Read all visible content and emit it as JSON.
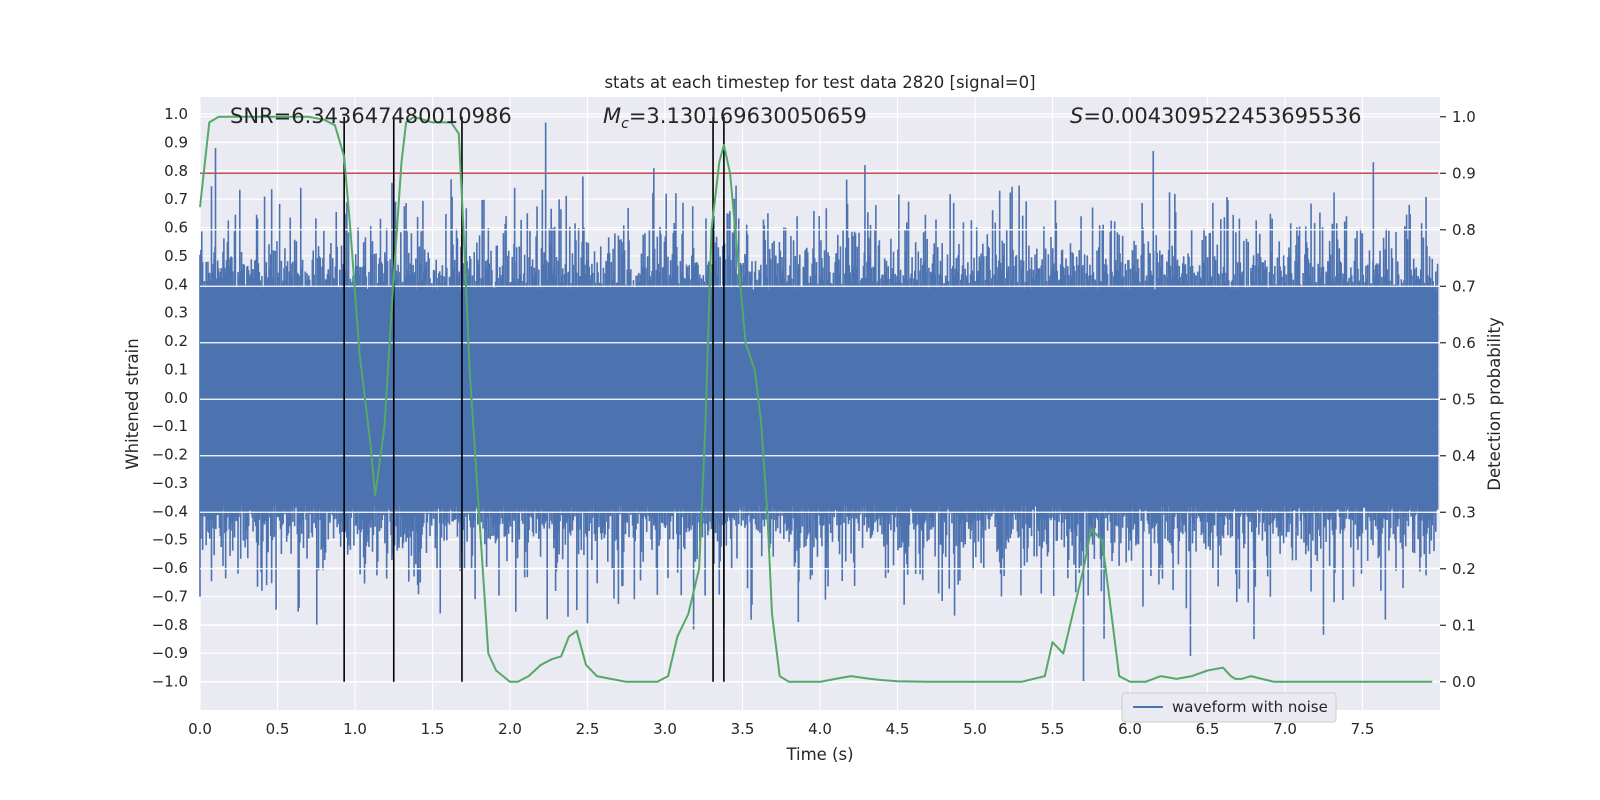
{
  "chart_data": {
    "type": "line",
    "title": "stats at each timestep for test data 2820 [signal=0]",
    "xlabel": "Time (s)",
    "ylabel_left": "Whitened strain",
    "ylabel_right": "Detection probability",
    "xlim": [
      0.0,
      8.0
    ],
    "ylim_left": [
      -1.1,
      1.06
    ],
    "ylim_right": [
      -0.05,
      1.035
    ],
    "x_ticks": [
      0.0,
      0.5,
      1.0,
      1.5,
      2.0,
      2.5,
      3.0,
      3.5,
      4.0,
      4.5,
      5.0,
      5.5,
      6.0,
      6.5,
      7.0,
      7.5
    ],
    "x_tick_labels": [
      "0.0",
      "0.5",
      "1.0",
      "1.5",
      "2.0",
      "2.5",
      "3.0",
      "3.5",
      "4.0",
      "4.5",
      "5.0",
      "5.5",
      "6.0",
      "6.5",
      "7.0",
      "7.5"
    ],
    "y_left_ticks": [
      1.0,
      0.9,
      0.8,
      0.7,
      0.6,
      0.5,
      0.4,
      0.3,
      0.2,
      0.1,
      0.0,
      -0.1,
      -0.2,
      -0.3,
      -0.4,
      -0.5,
      -0.6,
      -0.7,
      -0.8,
      -0.9,
      -1.0
    ],
    "y_left_tick_labels": [
      "1.0",
      "0.9",
      "0.8",
      "0.7",
      "0.6",
      "0.5",
      "0.4",
      "0.3",
      "0.2",
      "0.1",
      "0.0",
      "−0.1",
      "−0.2",
      "−0.3",
      "−0.4",
      "−0.5",
      "−0.6",
      "−0.7",
      "−0.8",
      "−0.9",
      "−1.0"
    ],
    "y_right_ticks": [
      1.0,
      0.9,
      0.8,
      0.7,
      0.6,
      0.5,
      0.4,
      0.3,
      0.2,
      0.1,
      0.0
    ],
    "y_right_tick_labels": [
      "1.0",
      "0.9",
      "0.8",
      "0.7",
      "0.6",
      "0.5",
      "0.4",
      "0.3",
      "0.2",
      "0.1",
      "0.0"
    ],
    "annotations": {
      "snr": "SNR=6.343647480010986",
      "mc_symbol": "M",
      "mc_subscript": "c",
      "mc_value": "=3.130169630050659",
      "s_symbol": "S",
      "s_value": "=0.004309522453695536"
    },
    "threshold": 0.9,
    "vertical_lines_s": [
      0.93,
      1.25,
      1.69,
      3.31,
      3.38
    ],
    "waveform": {
      "name": "waveform with noise",
      "color": "#4c72b0",
      "duration_s": 7.99,
      "core_amplitude": 0.38,
      "typical_peak": 0.6,
      "spikes": [
        {
          "t": 0.1,
          "v": 0.88
        },
        {
          "t": 0.65,
          "v": 0.74
        },
        {
          "t": 1.02,
          "v": 0.6
        },
        {
          "t": 1.62,
          "v": 0.77
        },
        {
          "t": 2.03,
          "v": 0.74
        },
        {
          "t": 2.23,
          "v": 0.97
        },
        {
          "t": 2.47,
          "v": 0.78
        },
        {
          "t": 4.29,
          "v": 0.82
        },
        {
          "t": 6.15,
          "v": 0.87
        },
        {
          "t": 7.57,
          "v": 0.83
        },
        {
          "t": 0.43,
          "v": -0.66
        },
        {
          "t": 1.55,
          "v": -0.76
        },
        {
          "t": 2.24,
          "v": -0.78
        },
        {
          "t": 3.38,
          "v": -0.81
        },
        {
          "t": 3.86,
          "v": -0.79
        },
        {
          "t": 5.7,
          "v": -1.0
        },
        {
          "t": 6.39,
          "v": -0.91
        },
        {
          "t": 6.8,
          "v": -0.85
        }
      ]
    },
    "detection_probability": {
      "color": "#55a868",
      "x": [
        0.0,
        0.06,
        0.12,
        0.2,
        0.3,
        0.4,
        0.5,
        0.6,
        0.7,
        0.8,
        0.87,
        0.93,
        0.97,
        1.03,
        1.1,
        1.13,
        1.19,
        1.25,
        1.3,
        1.33,
        1.38,
        1.44,
        1.5,
        1.56,
        1.62,
        1.67,
        1.7,
        1.74,
        1.8,
        1.86,
        1.91,
        2.0,
        2.05,
        2.12,
        2.2,
        2.27,
        2.33,
        2.38,
        2.43,
        2.49,
        2.56,
        2.65,
        2.75,
        2.85,
        2.95,
        3.02,
        3.08,
        3.15,
        3.22,
        3.26,
        3.3,
        3.35,
        3.38,
        3.42,
        3.46,
        3.52,
        3.58,
        3.62,
        3.66,
        3.69,
        3.74,
        3.8,
        3.9,
        4.0,
        4.1,
        4.2,
        4.3,
        4.4,
        4.5,
        4.7,
        4.9,
        5.1,
        5.3,
        5.45,
        5.5,
        5.57,
        5.63,
        5.7,
        5.75,
        5.82,
        5.88,
        5.93,
        6.0,
        6.05,
        6.1,
        6.2,
        6.3,
        6.4,
        6.5,
        6.6,
        6.65,
        6.68,
        6.72,
        6.78,
        6.85,
        6.93,
        7.0,
        7.1,
        7.2,
        7.4,
        7.6,
        7.8,
        7.95
      ],
      "y": [
        0.84,
        0.99,
        1.0,
        1.0,
        1.0,
        1.0,
        1.0,
        1.0,
        1.0,
        0.995,
        0.985,
        0.93,
        0.8,
        0.58,
        0.42,
        0.33,
        0.45,
        0.72,
        0.92,
        0.99,
        1.0,
        0.995,
        0.99,
        0.99,
        0.99,
        0.97,
        0.8,
        0.55,
        0.3,
        0.05,
        0.02,
        0.0,
        0.0,
        0.01,
        0.03,
        0.04,
        0.045,
        0.08,
        0.09,
        0.03,
        0.01,
        0.005,
        0.0,
        0.0,
        0.0,
        0.01,
        0.08,
        0.12,
        0.2,
        0.45,
        0.8,
        0.92,
        0.95,
        0.9,
        0.78,
        0.6,
        0.55,
        0.46,
        0.3,
        0.12,
        0.01,
        0.0,
        0.0,
        0.0,
        0.005,
        0.01,
        0.006,
        0.003,
        0.001,
        0.0,
        0.0,
        0.0,
        0.0,
        0.01,
        0.07,
        0.05,
        0.12,
        0.2,
        0.27,
        0.25,
        0.12,
        0.01,
        0.0,
        0.0,
        0.0,
        0.01,
        0.005,
        0.01,
        0.02,
        0.025,
        0.01,
        0.005,
        0.005,
        0.01,
        0.005,
        0.0,
        0.0,
        0.0,
        0.0,
        0.0,
        0.0,
        0.0,
        0.0
      ]
    },
    "legend": {
      "label": "waveform with noise",
      "position": "lower right"
    },
    "grid": true
  }
}
